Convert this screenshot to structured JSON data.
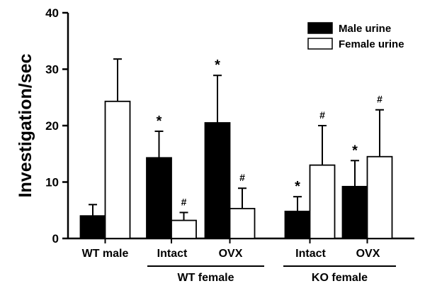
{
  "chart_data": {
    "type": "bar",
    "title": "",
    "xlabel": "",
    "ylabel": "Investigation/sec",
    "ylim": [
      0,
      40
    ],
    "yticks": [
      "0",
      "10",
      "20",
      "30",
      "40"
    ],
    "grid": false,
    "legend_position": "top-right",
    "categories": [
      "WT male",
      "Intact",
      "OVX",
      "Intact",
      "OVX"
    ],
    "category_groups": [
      {
        "label": "WT female",
        "categories": [
          1,
          2
        ]
      },
      {
        "label": "KO female",
        "categories": [
          3,
          4
        ]
      }
    ],
    "series": [
      {
        "name": "Male urine",
        "color": "#000000",
        "values": [
          4.0,
          14.3,
          20.5,
          4.8,
          9.2
        ],
        "errors": [
          2.0,
          4.7,
          8.4,
          2.6,
          4.6
        ],
        "annotations": [
          "",
          "*",
          "*",
          "*",
          "*"
        ]
      },
      {
        "name": "Female urine",
        "color": "#ffffff",
        "values": [
          24.3,
          3.2,
          5.3,
          13.0,
          14.5
        ],
        "errors": [
          7.5,
          1.4,
          3.6,
          7.0,
          8.3
        ],
        "annotations": [
          "",
          "#",
          "#",
          "#",
          "#"
        ]
      }
    ]
  }
}
